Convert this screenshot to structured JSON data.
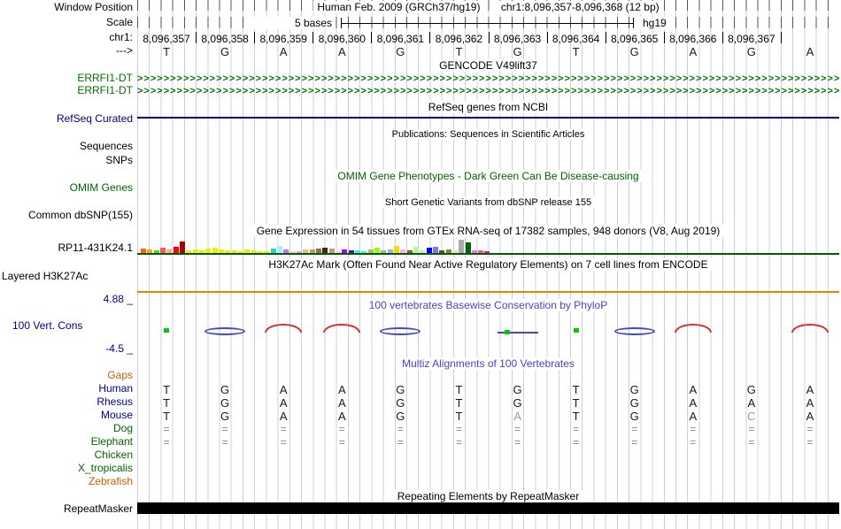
{
  "window": {
    "title": "Human Feb. 2009 (GRCh37/hg19)",
    "range": "chr1:8,096,357-8,096,368 (12 bp)"
  },
  "scale": {
    "value": "5 bases",
    "assembly": "hg19"
  },
  "ruler": {
    "chrom_label": "chr1:",
    "strand_label": "--->",
    "coordinates": [
      "8,096,357",
      "8,096,358",
      "8,096,359",
      "8,096,360",
      "8,096,361",
      "8,096,362",
      "8,096,363",
      "8,096,364",
      "8,096,365",
      "8,096,366",
      "8,096,367"
    ],
    "bases": [
      "T",
      "G",
      "A",
      "A",
      "G",
      "T",
      "G",
      "T",
      "G",
      "A",
      "G",
      "A"
    ]
  },
  "sidebar": {
    "items": [
      {
        "name": "window-position-label",
        "label": "Window Position",
        "color": "#000000",
        "interactable": false
      },
      {
        "name": "scale-label",
        "label": "Scale",
        "color": "#000000",
        "interactable": false
      },
      {
        "name": "chrom-label",
        "label": "chr1:",
        "color": "#000000",
        "interactable": false
      },
      {
        "name": "strand-arrow-label",
        "label": "--->",
        "color": "#000000",
        "interactable": false
      },
      {
        "name": "gene-label-errfi1-dt-1",
        "label": "ERRFI1-DT",
        "color": "#007200",
        "interactable": true
      },
      {
        "name": "gene-label-errfi1-dt-2",
        "label": "ERRFI1-DT",
        "color": "#007200",
        "interactable": true
      },
      {
        "name": "track-label-refseq-curated",
        "label": "RefSeq Curated",
        "color": "#000080",
        "interactable": true
      },
      {
        "name": "track-label-sequences",
        "label": "Sequences",
        "color": "#000000",
        "interactable": true
      },
      {
        "name": "track-label-snps",
        "label": "SNPs",
        "color": "#000000",
        "interactable": true
      },
      {
        "name": "track-label-omim-genes",
        "label": "OMIM Genes",
        "color": "#006400",
        "interactable": true
      },
      {
        "name": "track-label-common-dbsnp",
        "label": "Common dbSNP(155)",
        "color": "#000000",
        "interactable": true
      },
      {
        "name": "item-label-rp11-431k24",
        "label": "RP11-431K24.1",
        "color": "#000000",
        "interactable": true
      },
      {
        "name": "track-label-layered-h3k27ac",
        "label": "Layered H3K27Ac",
        "color": "#000000",
        "interactable": true
      },
      {
        "name": "phylop-max-value",
        "label": "4.88 _",
        "color": "#00008b",
        "interactable": false
      },
      {
        "name": "track-label-100-vert-cons",
        "label": "100 Vert. Cons",
        "color": "#00008b",
        "interactable": true
      },
      {
        "name": "phylop-min-value",
        "label": "-4.5 _",
        "color": "#00008b",
        "interactable": false
      },
      {
        "name": "multiz-gaps-label",
        "label": "Gaps",
        "color": "#c06000",
        "interactable": true
      },
      {
        "name": "species-label-human",
        "label": "Human",
        "color": "#00008b",
        "interactable": true
      },
      {
        "name": "species-label-rhesus",
        "label": "Rhesus",
        "color": "#00008b",
        "interactable": true
      },
      {
        "name": "species-label-mouse",
        "label": "Mouse",
        "color": "#00008b",
        "interactable": true
      },
      {
        "name": "species-label-dog",
        "label": "Dog",
        "color": "#006400",
        "interactable": true
      },
      {
        "name": "species-label-elephant",
        "label": "Elephant",
        "color": "#006400",
        "interactable": true
      },
      {
        "name": "species-label-chicken",
        "label": "Chicken",
        "color": "#006400",
        "interactable": true
      },
      {
        "name": "species-label-x-tropicalis",
        "label": "X_tropicalis",
        "color": "#006400",
        "interactable": true
      },
      {
        "name": "species-label-zebrafish",
        "label": "Zebrafish",
        "color": "#c06000",
        "interactable": true
      },
      {
        "name": "track-label-repeatmasker",
        "label": "RepeatMasker",
        "color": "#000000",
        "interactable": true
      }
    ]
  },
  "tracks": {
    "gencode": {
      "title": "GENCODE V49lift37",
      "arrow_char": ">",
      "arrow_count": 160,
      "color": "#007200"
    },
    "refseq": {
      "title": "RefSeq genes from NCBI",
      "color": "#000080"
    },
    "publications": {
      "title": "Publications: Sequences in Scientific Articles"
    },
    "omim": {
      "title": "OMIM Gene Phenotypes - Dark Green Can Be Disease-causing",
      "color": "#006400"
    },
    "dbsnp": {
      "title": "Short Genetic Variants from dbSNP release 155"
    },
    "gtex": {
      "title": "Gene Expression in 54 tissues from GTEx RNA-seq of 17382 samples, 948 donors (V8, Aug 2019)",
      "item_label": "RP11-431K24.1",
      "baseline_color": "#005c00",
      "bars": [
        {
          "c": "#FF6600",
          "h": 5
        },
        {
          "c": "#FFAA00",
          "h": 4
        },
        {
          "c": "#33DD33",
          "h": 3
        },
        {
          "c": "#FF5555",
          "h": 6
        },
        {
          "c": "#FFAA99",
          "h": 4
        },
        {
          "c": "#FF0000",
          "h": 7
        },
        {
          "c": "#AA0000",
          "h": 13
        },
        {
          "c": "#EEEE00",
          "h": 3
        },
        {
          "c": "#EEEE00",
          "h": 4
        },
        {
          "c": "#EEEE00",
          "h": 3
        },
        {
          "c": "#EEEE00",
          "h": 5
        },
        {
          "c": "#EEEE00",
          "h": 6
        },
        {
          "c": "#EEEE00",
          "h": 4
        },
        {
          "c": "#EEEE00",
          "h": 3
        },
        {
          "c": "#EEEE00",
          "h": 3
        },
        {
          "c": "#EEEE00",
          "h": 2
        },
        {
          "c": "#EEEE00",
          "h": 4
        },
        {
          "c": "#EEEE00",
          "h": 3
        },
        {
          "c": "#EEEE00",
          "h": 2
        },
        {
          "c": "#EEEE00",
          "h": 2
        },
        {
          "c": "#33CCCC",
          "h": 5
        },
        {
          "c": "#AAEEFF",
          "h": 8
        },
        {
          "c": "#CC66FF",
          "h": 4
        },
        {
          "c": "#FFCCCC",
          "h": 2
        },
        {
          "c": "#CCAADD",
          "h": 2
        },
        {
          "c": "#EEBB77",
          "h": 4
        },
        {
          "c": "#CC9955",
          "h": 4
        },
        {
          "c": "#8B7355",
          "h": 5
        },
        {
          "c": "#552200",
          "h": 6
        },
        {
          "c": "#BB9988",
          "h": 5
        },
        {
          "c": "#FFCCCC",
          "h": 2
        },
        {
          "c": "#9900FF",
          "h": 4
        },
        {
          "c": "#660099",
          "h": 3
        },
        {
          "c": "#22FFDD",
          "h": 3
        },
        {
          "c": "#33FFC2",
          "h": 2
        },
        {
          "c": "#AABB66",
          "h": 4
        },
        {
          "c": "#99FF00",
          "h": 6
        },
        {
          "c": "#99BB88",
          "h": 3
        },
        {
          "c": "#AAAAFF",
          "h": 4
        },
        {
          "c": "#FFD700",
          "h": 8
        },
        {
          "c": "#FFAAFF",
          "h": 4
        },
        {
          "c": "#995522",
          "h": 3
        },
        {
          "c": "#AAFF99",
          "h": 7
        },
        {
          "c": "#DDDDDD",
          "h": 3
        },
        {
          "c": "#0000FF",
          "h": 6
        },
        {
          "c": "#7777FF",
          "h": 7
        },
        {
          "c": "#555522",
          "h": 3
        },
        {
          "c": "#778855",
          "h": 4
        },
        {
          "c": "#FFDD99",
          "h": 3
        },
        {
          "c": "#AAAAAA",
          "h": 15
        },
        {
          "c": "#006600",
          "h": 12
        },
        {
          "c": "#FF66FF",
          "h": 3
        },
        {
          "c": "#FF5599",
          "h": 3
        },
        {
          "c": "#FF00BB",
          "h": 2
        }
      ]
    },
    "h3k27ac": {
      "title": "H3K27Ac Mark (Often Found Near Active Regulatory Elements) on 7 cell lines from ENCODE",
      "line_color": "#dd8800"
    },
    "phylop": {
      "title": "100 vertebrates Basewise Conservation by PhyloP",
      "max_label": "4.88 _",
      "min_label": "-4.5 _",
      "colors": {
        "positive": "#d83030",
        "negative": "#4444cc",
        "zero": "#00cc00"
      },
      "glyphs": [
        "green-square",
        "blue-ellipse",
        "red-arc",
        "red-arc",
        "blue-ellipse",
        "none",
        "blue-underline",
        "green-square",
        "blue-ellipse",
        "red-arc",
        "none",
        "red-arc"
      ]
    },
    "multiz": {
      "title": "Multiz Alignments of 100 Vertebrates",
      "rows": [
        {
          "species": "Human",
          "letters": [
            "T",
            "G",
            "A",
            "A",
            "G",
            "T",
            "G",
            "T",
            "G",
            "A",
            "G",
            "A"
          ],
          "gray": []
        },
        {
          "species": "Rhesus",
          "letters": [
            "T",
            "G",
            "A",
            "A",
            "G",
            "T",
            "G",
            "T",
            "G",
            "A",
            "A",
            "A"
          ],
          "gray": []
        },
        {
          "species": "Mouse",
          "letters": [
            "T",
            "G",
            "A",
            "A",
            "G",
            "T",
            "A",
            "T",
            "G",
            "A",
            "C",
            "A"
          ],
          "gray": [
            6,
            10
          ]
        },
        {
          "species": "Dog",
          "letters": [
            "=",
            "=",
            "=",
            "=",
            "=",
            "=",
            "=",
            "=",
            "=",
            "=",
            "=",
            "="
          ],
          "gray": []
        },
        {
          "species": "Elephant",
          "letters": [
            "=",
            "=",
            "=",
            "=",
            "=",
            "=",
            "=",
            "=",
            "=",
            "=",
            "=",
            "="
          ],
          "gray": []
        },
        {
          "species": "Chicken",
          "letters": [],
          "gray": []
        },
        {
          "species": "X_tropicalis",
          "letters": [],
          "gray": []
        },
        {
          "species": "Zebrafish",
          "letters": [],
          "gray": []
        }
      ]
    },
    "repeatmasker": {
      "title": "Repeating Elements by RepeatMasker",
      "bar_color": "#000000"
    }
  }
}
